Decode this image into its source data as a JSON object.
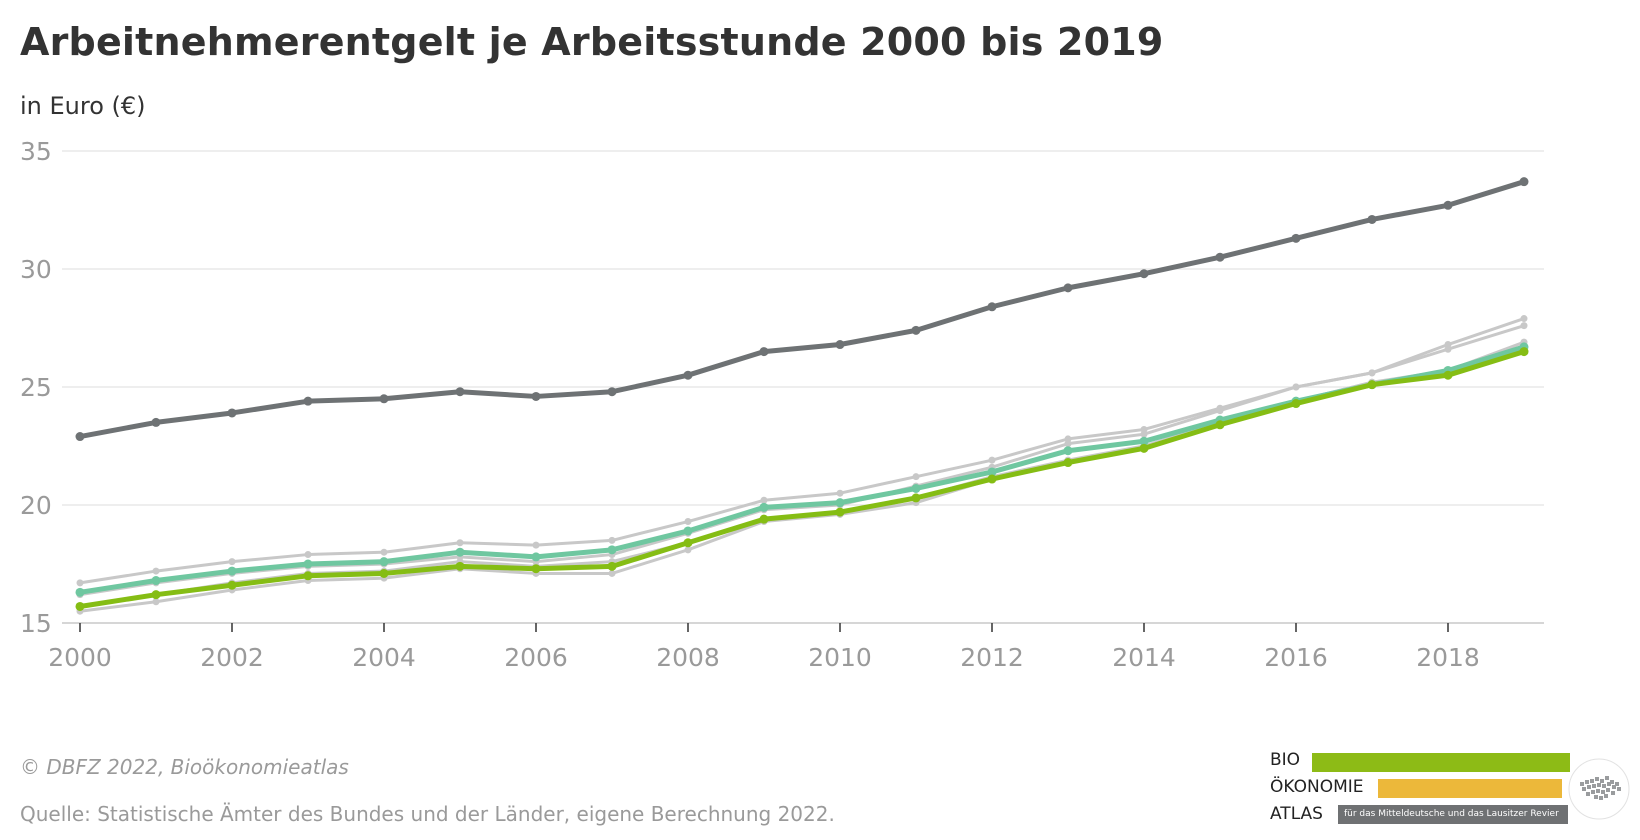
{
  "title": "Arbeitnehmerentgelt je Arbeitsstunde 2000 bis 2019",
  "subtitle": "in Euro (€)",
  "footer": {
    "copyright": "© DBFZ 2022, Bioökonomieatlas",
    "source": "Quelle: Statistische Ämter des Bundes und der Länder, eigene Berechnung 2022."
  },
  "logo": {
    "line1": "BIO",
    "line2": "ÖKONOMIE",
    "line3": "ATLAS",
    "tagline": "für das Mitteldeutsche und das Lausitzer Revier",
    "colors": {
      "bio": "#8dbb16",
      "oekonomie": "#ecb83a",
      "atlas": "#6f7173"
    }
  },
  "chart_data": {
    "type": "line",
    "title": "Arbeitnehmerentgelt je Arbeitsstunde 2000 bis 2019",
    "subtitle": "in Euro (€)",
    "xlabel": "",
    "ylabel": "",
    "x": [
      2000,
      2001,
      2002,
      2003,
      2004,
      2005,
      2006,
      2007,
      2008,
      2009,
      2010,
      2011,
      2012,
      2013,
      2014,
      2015,
      2016,
      2017,
      2018,
      2019
    ],
    "x_ticks": [
      "2000",
      "2002",
      "2004",
      "2006",
      "2008",
      "2010",
      "2012",
      "2014",
      "2016",
      "2018"
    ],
    "y_ticks": [
      "15",
      "20",
      "25",
      "30",
      "35"
    ],
    "ylim": [
      15,
      35
    ],
    "xlim": [
      2000,
      2019
    ],
    "grid": true,
    "legend": false,
    "series": [
      {
        "color": "#c8c8c8",
        "values": [
          16.7,
          17.2,
          17.6,
          17.9,
          18.0,
          18.4,
          18.3,
          18.5,
          19.3,
          20.2,
          20.5,
          21.2,
          21.9,
          22.8,
          23.2,
          24.1,
          25.0,
          25.6,
          26.8,
          27.9
        ]
      },
      {
        "color": "#c8c8c8",
        "values": [
          16.2,
          16.7,
          17.1,
          17.4,
          17.5,
          17.8,
          17.6,
          17.9,
          18.8,
          19.8,
          20.0,
          20.8,
          21.6,
          22.6,
          23.0,
          24.0,
          25.0,
          25.6,
          26.6,
          27.6
        ]
      },
      {
        "color": "#c8c8c8",
        "values": [
          15.7,
          16.2,
          16.7,
          17.1,
          17.2,
          17.6,
          17.4,
          17.6,
          18.4,
          19.4,
          19.7,
          20.3,
          21.2,
          21.9,
          22.5,
          23.5,
          24.4,
          25.2,
          25.6,
          26.7
        ]
      },
      {
        "color": "#c8c8c8",
        "values": [
          15.5,
          15.9,
          16.4,
          16.8,
          16.9,
          17.3,
          17.1,
          17.1,
          18.1,
          19.3,
          19.6,
          20.1,
          21.1,
          21.8,
          22.4,
          23.4,
          24.4,
          25.2,
          25.7,
          26.9
        ]
      },
      {
        "color": "#6fc7a0",
        "values": [
          16.3,
          16.8,
          17.2,
          17.5,
          17.6,
          18.0,
          17.8,
          18.1,
          18.9,
          19.9,
          20.1,
          20.7,
          21.4,
          22.3,
          22.7,
          23.6,
          24.4,
          25.1,
          25.7,
          26.7
        ]
      },
      {
        "color": "#85bd14",
        "values": [
          15.7,
          16.2,
          16.6,
          17.0,
          17.1,
          17.4,
          17.3,
          17.4,
          18.4,
          19.4,
          19.7,
          20.3,
          21.1,
          21.8,
          22.4,
          23.4,
          24.3,
          25.1,
          25.5,
          26.5
        ]
      },
      {
        "color": "#6e7274",
        "values": [
          22.9,
          23.5,
          23.9,
          24.4,
          24.5,
          24.8,
          24.6,
          24.8,
          25.5,
          26.5,
          26.8,
          27.4,
          28.4,
          29.2,
          29.8,
          30.5,
          31.3,
          32.1,
          32.7,
          33.7
        ]
      }
    ]
  }
}
